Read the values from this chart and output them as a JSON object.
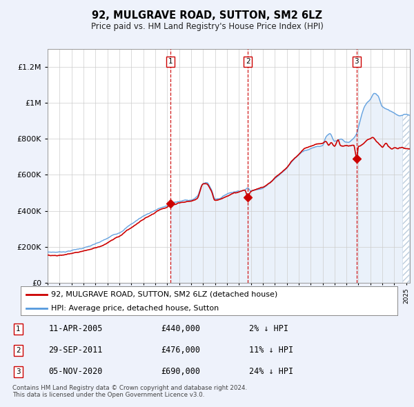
{
  "title": "92, MULGRAVE ROAD, SUTTON, SM2 6LZ",
  "subtitle": "Price paid vs. HM Land Registry's House Price Index (HPI)",
  "legend_label_red": "92, MULGRAVE ROAD, SUTTON, SM2 6LZ (detached house)",
  "legend_label_blue": "HPI: Average price, detached house, Sutton",
  "footer": "Contains HM Land Registry data © Crown copyright and database right 2024.\nThis data is licensed under the Open Government Licence v3.0.",
  "transactions": [
    {
      "num": 1,
      "date": "11-APR-2005",
      "price": 440000,
      "pct": "2%",
      "direction": "↓",
      "year_float": 2005.27
    },
    {
      "num": 2,
      "date": "29-SEP-2011",
      "price": 476000,
      "pct": "11%",
      "direction": "↓",
      "year_float": 2011.75
    },
    {
      "num": 3,
      "date": "05-NOV-2020",
      "price": 690000,
      "pct": "24%",
      "direction": "↓",
      "year_float": 2020.85
    }
  ],
  "background_color": "#eef2fb",
  "plot_bg_color": "#ffffff",
  "red_color": "#cc0000",
  "blue_color": "#5599dd",
  "blue_fill_color": "#dce8f8",
  "grid_color": "#cccccc",
  "shade_color": "#dce8f8",
  "ylim": [
    0,
    1300000
  ],
  "xlim": [
    1995.0,
    2025.3
  ]
}
